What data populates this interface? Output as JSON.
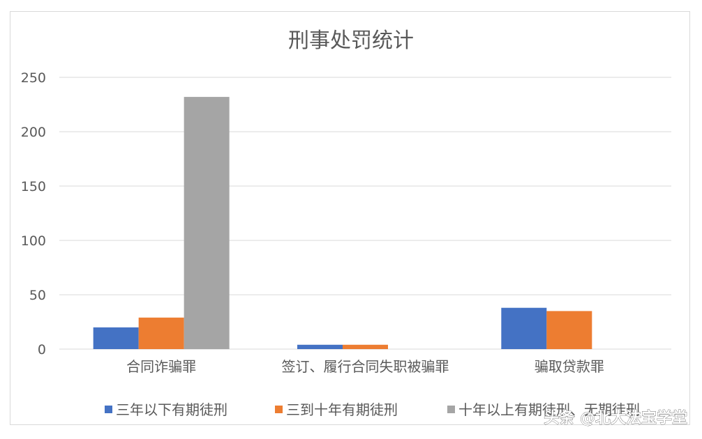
{
  "chart_data": {
    "type": "bar",
    "title": "刑事处罚统计",
    "categories": [
      "合同诈骗罪",
      "签订、履行合同失职被骗罪",
      "骗取贷款罪"
    ],
    "series": [
      {
        "name": "三年以下有期徒刑",
        "color": "#4472c4",
        "values": [
          20,
          4,
          38
        ]
      },
      {
        "name": "三到十年有期徒刑",
        "color": "#ed7d31",
        "values": [
          29,
          4,
          35
        ]
      },
      {
        "name": "十年以上有期徒刑、无期徒刑",
        "color": "#a5a5a5",
        "values": [
          232,
          0,
          0
        ]
      }
    ],
    "ylim": [
      0,
      250
    ],
    "yticks": [
      0,
      50,
      100,
      150,
      200,
      250
    ],
    "grid": true,
    "legend_position": "bottom"
  },
  "watermark": {
    "text": "头条 @北大法宝学堂"
  }
}
